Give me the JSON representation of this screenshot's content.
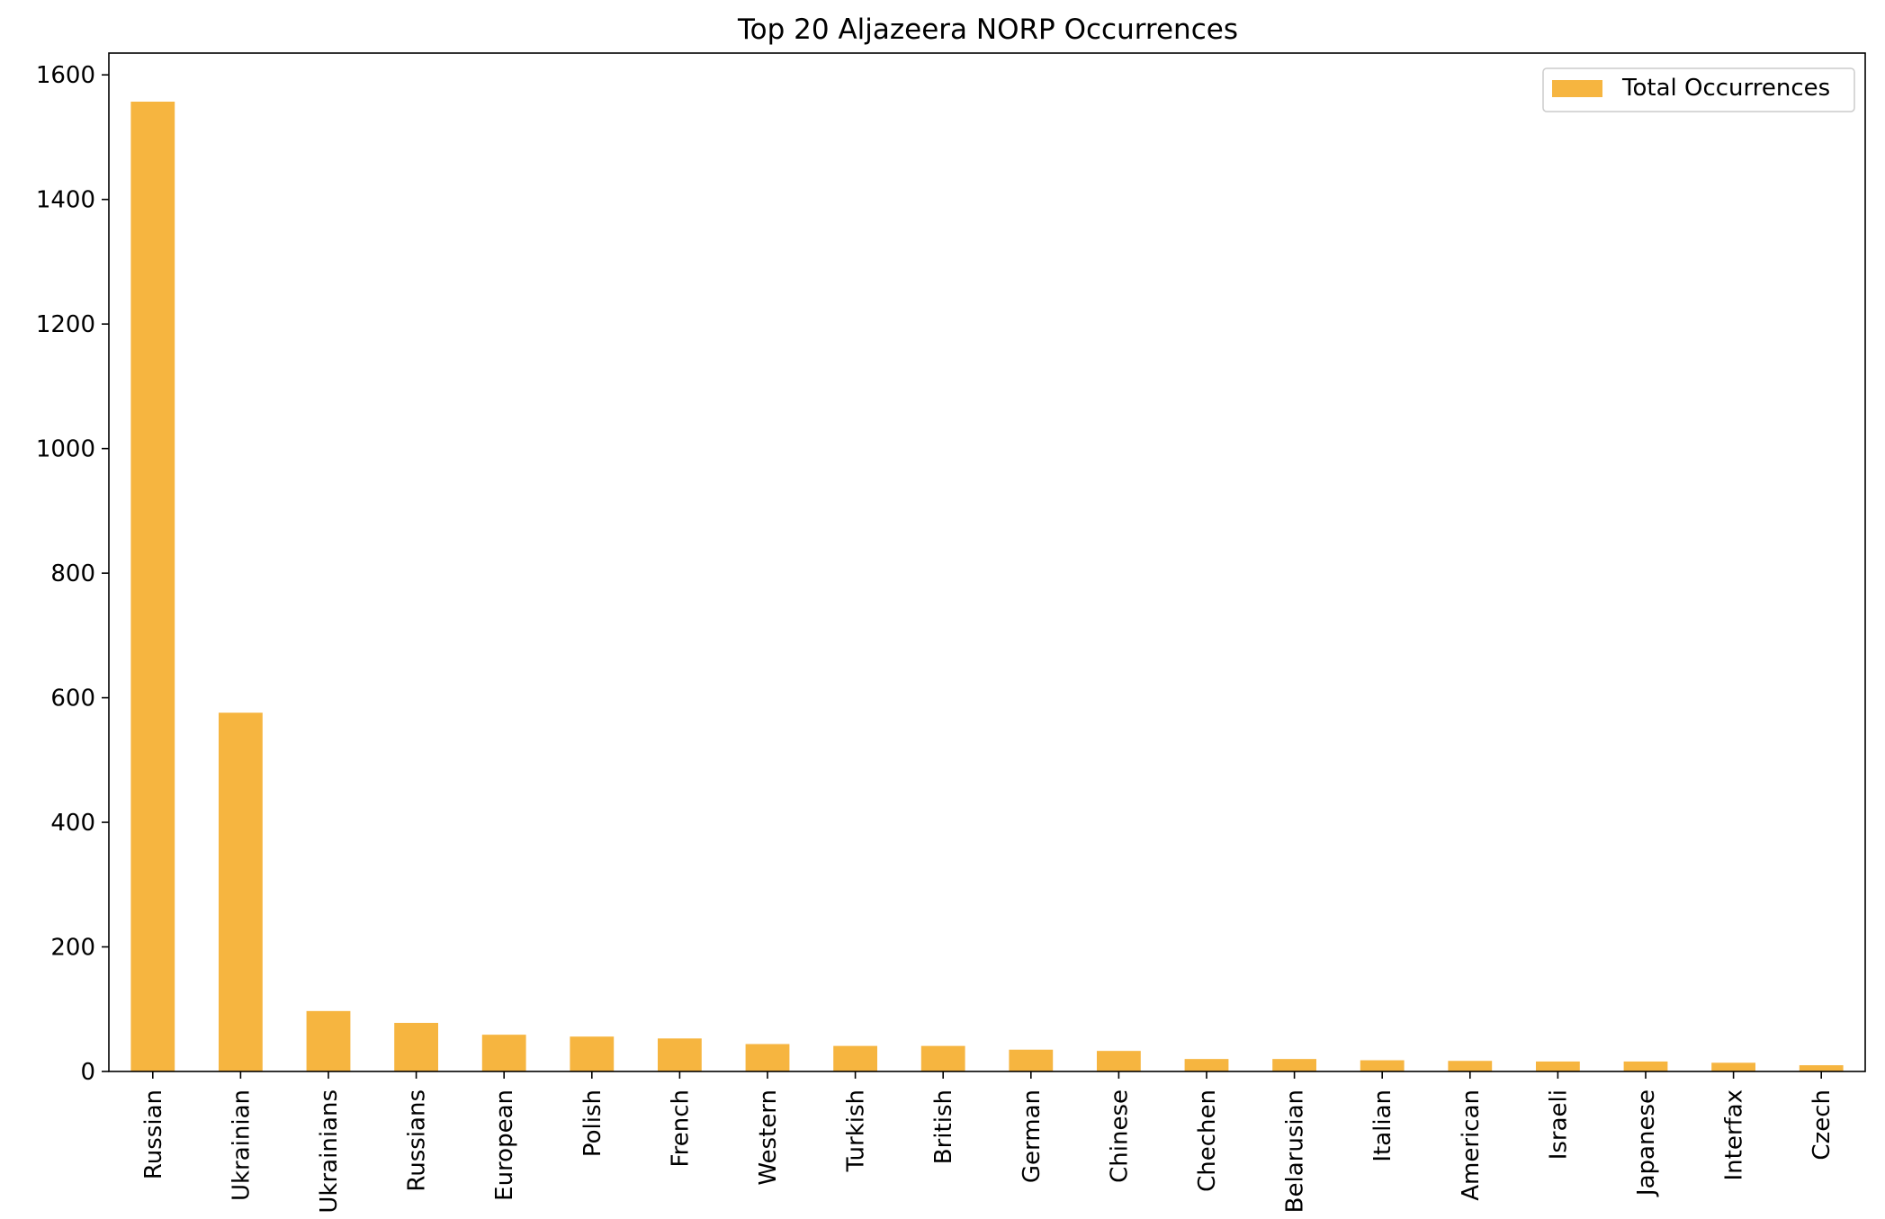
{
  "chart_data": {
    "type": "bar",
    "title": "Top 20 Aljazeera NORP Occurrences",
    "xlabel": "",
    "ylabel": "",
    "categories": [
      "Russian",
      "Ukrainian",
      "Ukrainians",
      "Russians",
      "European",
      "Polish",
      "French",
      "Western",
      "Turkish",
      "British",
      "German",
      "Chinese",
      "Chechen",
      "Belarusian",
      "Italian",
      "American",
      "Israeli",
      "Japanese",
      "Interfax",
      "Czech"
    ],
    "series": [
      {
        "name": "Total Occurrences",
        "values": [
          1557,
          576,
          97,
          78,
          59,
          56,
          53,
          44,
          41,
          41,
          35,
          33,
          20,
          20,
          18,
          17,
          16,
          16,
          14,
          10
        ]
      }
    ],
    "ylim": [
      0,
      1635
    ],
    "yticks": [
      0,
      200,
      400,
      600,
      800,
      1000,
      1200,
      1400,
      1600
    ],
    "grid": false,
    "legend_position": "top-right",
    "bar_color": "#F6B540",
    "axis_color": "#000000"
  }
}
